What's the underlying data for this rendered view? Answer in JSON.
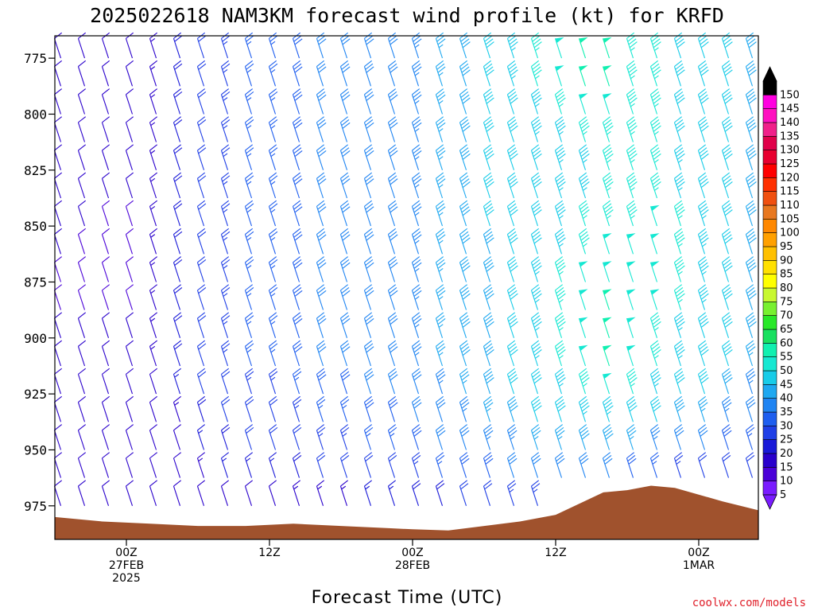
{
  "title": "2025022618 NAM3KM forecast wind profile (kt) for KRFD",
  "xlabel": "Forecast Time (UTC)",
  "credit": "coolwx.com/models",
  "colors": {
    "terrain": "#a0522d",
    "credit": "#e0202a"
  },
  "chart_data": {
    "type": "heatmap",
    "title": "2025022618 NAM3KM forecast wind profile (kt) for KRFD",
    "xlabel": "Forecast Time (UTC)",
    "ylabel": "",
    "y_axis": {
      "ticks": [
        775,
        800,
        825,
        850,
        875,
        900,
        925,
        950,
        975
      ],
      "ylim": [
        765,
        990
      ],
      "inverted": true,
      "unit": "hPa"
    },
    "x_axis": {
      "ticks": [
        {
          "hour": 6,
          "lines": [
            "00Z",
            "27FEB",
            "2025"
          ]
        },
        {
          "hour": 18,
          "lines": [
            "12Z"
          ]
        },
        {
          "hour": 30,
          "lines": [
            "00Z",
            "28FEB"
          ]
        },
        {
          "hour": 42,
          "lines": [
            "12Z"
          ]
        },
        {
          "hour": 54,
          "lines": [
            "00Z",
            "1MAR"
          ]
        }
      ],
      "xlim": [
        0,
        59
      ],
      "unit": "forecast hour"
    },
    "colorbar": {
      "levels": [
        5,
        10,
        15,
        20,
        25,
        30,
        35,
        40,
        45,
        50,
        55,
        60,
        65,
        70,
        75,
        80,
        85,
        90,
        95,
        100,
        105,
        110,
        115,
        120,
        125,
        130,
        135,
        140,
        145,
        150
      ],
      "colors": [
        "#7a1cff",
        "#4a00d8",
        "#2a00cc",
        "#1a1ad8",
        "#1f3fe6",
        "#1e5eef",
        "#1f84f2",
        "#1ea8f0",
        "#18cce8",
        "#16e8d2",
        "#10f0b0",
        "#18e060",
        "#28e828",
        "#78f030",
        "#c8f830",
        "#ffff00",
        "#ffe000",
        "#ffc000",
        "#ffa000",
        "#ff8800",
        "#e87820",
        "#f05010",
        "#ff3000",
        "#ff0000",
        "#e80030",
        "#e0004a",
        "#f0208a",
        "#ff10c0",
        "#ff00e0",
        "#000000"
      ]
    },
    "terrain_pressure": [
      {
        "hour": 0,
        "p": 980
      },
      {
        "hour": 4,
        "p": 982
      },
      {
        "hour": 8,
        "p": 983
      },
      {
        "hour": 12,
        "p": 984
      },
      {
        "hour": 16,
        "p": 984
      },
      {
        "hour": 20,
        "p": 983
      },
      {
        "hour": 24,
        "p": 984
      },
      {
        "hour": 28,
        "p": 985
      },
      {
        "hour": 30,
        "p": 985.5
      },
      {
        "hour": 33,
        "p": 986
      },
      {
        "hour": 36,
        "p": 984
      },
      {
        "hour": 39,
        "p": 982
      },
      {
        "hour": 42,
        "p": 979
      },
      {
        "hour": 44,
        "p": 974
      },
      {
        "hour": 46,
        "p": 969
      },
      {
        "hour": 48,
        "p": 968
      },
      {
        "hour": 50,
        "p": 966
      },
      {
        "hour": 52,
        "p": 967
      },
      {
        "hour": 54,
        "p": 970
      },
      {
        "hour": 56,
        "p": 973
      },
      {
        "hour": 59,
        "p": 977
      }
    ],
    "wind_barbs": {
      "hour_step": 2,
      "pressure_levels": [
        775,
        787.5,
        800,
        812.5,
        825,
        837.5,
        850,
        862.5,
        875,
        887.5,
        900,
        912.5,
        925,
        937.5,
        950,
        962.5,
        975
      ],
      "note": "Speed (kt) grid approximated from barb colors; rows = pressure levels, columns = forecast hours 0..58 step 2",
      "speed_kt": [
        [
          12,
          12,
          10,
          10,
          14,
          18,
          22,
          24,
          26,
          26,
          28,
          30,
          30,
          32,
          32,
          34,
          36,
          38,
          40,
          44,
          46,
          48,
          50,
          50,
          46,
          46,
          42,
          42,
          40,
          38
        ],
        [
          12,
          12,
          10,
          10,
          14,
          18,
          22,
          24,
          26,
          26,
          28,
          30,
          30,
          32,
          32,
          34,
          36,
          38,
          40,
          44,
          46,
          48,
          50,
          50,
          46,
          46,
          42,
          42,
          40,
          38
        ],
        [
          12,
          10,
          10,
          10,
          14,
          18,
          22,
          24,
          26,
          26,
          28,
          30,
          30,
          32,
          32,
          34,
          36,
          38,
          40,
          42,
          44,
          46,
          48,
          48,
          46,
          46,
          42,
          42,
          40,
          38
        ],
        [
          12,
          10,
          10,
          10,
          14,
          18,
          22,
          24,
          26,
          26,
          28,
          30,
          30,
          32,
          32,
          34,
          36,
          38,
          40,
          42,
          44,
          44,
          46,
          46,
          46,
          46,
          42,
          42,
          40,
          38
        ],
        [
          10,
          10,
          10,
          10,
          14,
          18,
          22,
          24,
          26,
          26,
          28,
          30,
          30,
          32,
          32,
          34,
          36,
          38,
          40,
          42,
          42,
          44,
          44,
          46,
          46,
          46,
          44,
          42,
          40,
          38
        ],
        [
          10,
          10,
          10,
          10,
          14,
          18,
          22,
          24,
          26,
          26,
          28,
          30,
          30,
          32,
          32,
          34,
          36,
          38,
          40,
          40,
          42,
          44,
          44,
          46,
          46,
          46,
          44,
          42,
          40,
          38
        ],
        [
          10,
          10,
          8,
          8,
          14,
          18,
          22,
          24,
          26,
          26,
          28,
          30,
          30,
          32,
          32,
          34,
          36,
          38,
          40,
          40,
          42,
          44,
          46,
          46,
          46,
          48,
          46,
          44,
          40,
          38
        ],
        [
          10,
          8,
          8,
          8,
          14,
          18,
          22,
          24,
          26,
          26,
          28,
          30,
          30,
          32,
          32,
          34,
          36,
          38,
          38,
          40,
          42,
          44,
          46,
          48,
          48,
          48,
          46,
          44,
          40,
          38
        ],
        [
          8,
          8,
          8,
          8,
          14,
          18,
          22,
          24,
          26,
          26,
          28,
          30,
          30,
          32,
          32,
          34,
          36,
          38,
          38,
          40,
          44,
          46,
          48,
          48,
          48,
          48,
          46,
          44,
          42,
          38
        ],
        [
          8,
          8,
          8,
          8,
          14,
          18,
          22,
          24,
          26,
          26,
          28,
          30,
          30,
          32,
          32,
          34,
          36,
          38,
          38,
          40,
          44,
          46,
          48,
          50,
          48,
          48,
          46,
          44,
          42,
          38
        ],
        [
          10,
          10,
          10,
          10,
          14,
          18,
          22,
          24,
          26,
          26,
          28,
          30,
          30,
          32,
          32,
          34,
          36,
          38,
          38,
          40,
          44,
          46,
          48,
          50,
          48,
          46,
          44,
          42,
          40,
          38
        ],
        [
          10,
          10,
          10,
          10,
          14,
          18,
          22,
          24,
          26,
          26,
          28,
          30,
          30,
          32,
          32,
          34,
          36,
          38,
          38,
          40,
          44,
          46,
          48,
          50,
          48,
          46,
          44,
          42,
          40,
          36
        ],
        [
          10,
          10,
          10,
          10,
          12,
          16,
          20,
          22,
          24,
          24,
          26,
          28,
          28,
          30,
          30,
          32,
          34,
          36,
          38,
          40,
          42,
          44,
          46,
          48,
          46,
          44,
          42,
          40,
          38,
          34
        ],
        [
          10,
          10,
          10,
          10,
          12,
          14,
          18,
          20,
          22,
          22,
          24,
          26,
          26,
          28,
          28,
          30,
          32,
          34,
          36,
          38,
          40,
          42,
          44,
          44,
          42,
          40,
          38,
          36,
          34,
          30
        ],
        [
          10,
          10,
          10,
          10,
          10,
          12,
          16,
          18,
          20,
          20,
          22,
          24,
          24,
          26,
          26,
          28,
          30,
          32,
          34,
          34,
          36,
          36,
          38,
          38,
          36,
          34,
          32,
          30,
          28,
          26
        ],
        [
          10,
          10,
          10,
          10,
          10,
          10,
          14,
          16,
          16,
          16,
          18,
          20,
          20,
          22,
          22,
          24,
          26,
          28,
          28,
          30,
          32,
          32,
          30,
          30,
          28,
          26,
          24,
          22,
          20,
          20
        ],
        [
          10,
          10,
          10,
          10,
          10,
          10,
          10,
          12,
          12,
          12,
          14,
          14,
          14,
          16,
          16,
          18,
          18,
          20,
          22,
          24,
          24,
          24,
          22,
          22,
          20,
          18,
          16,
          14,
          14,
          14
        ]
      ]
    }
  }
}
